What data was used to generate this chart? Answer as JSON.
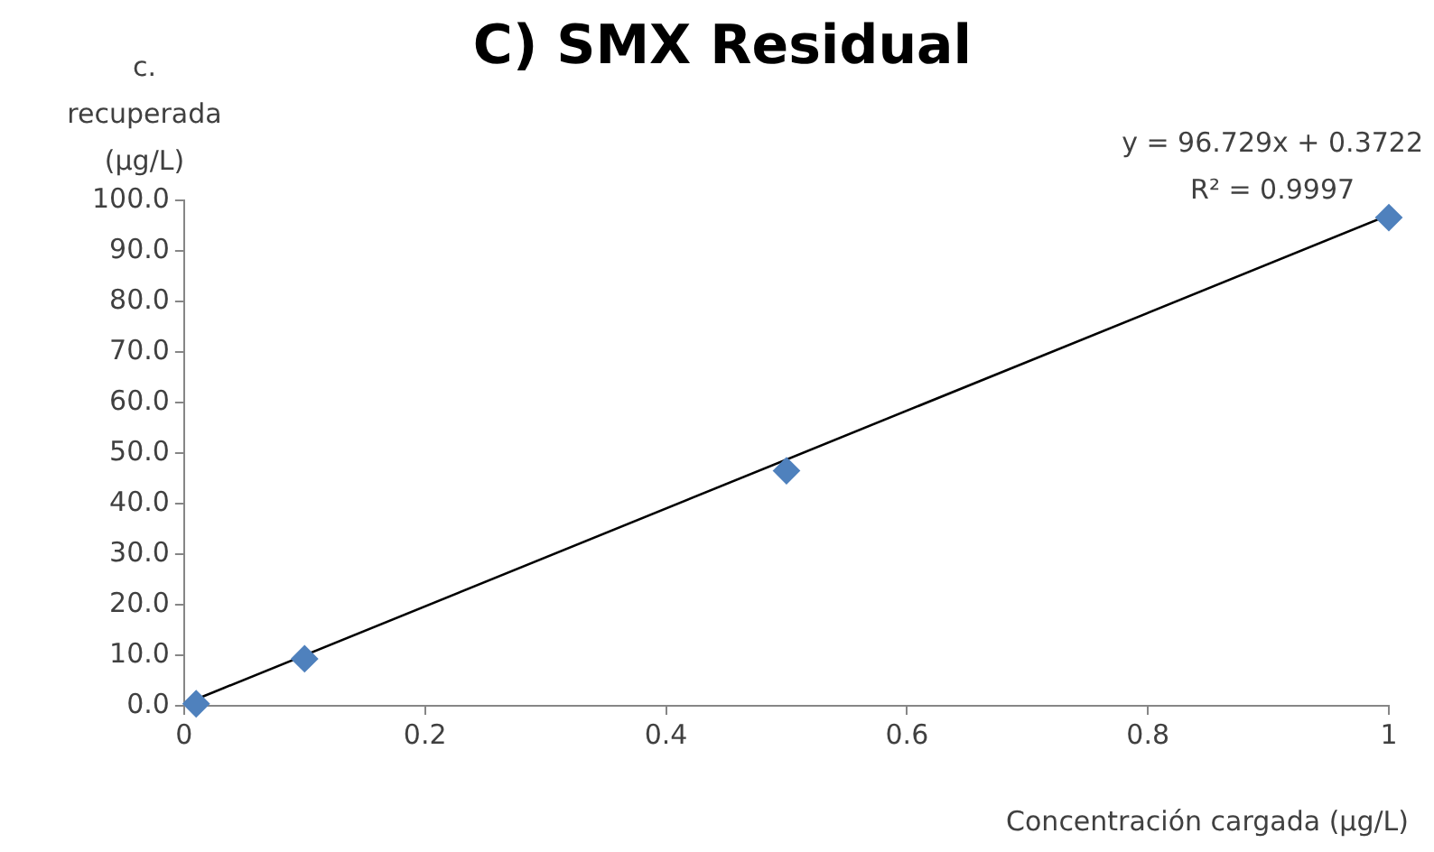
{
  "chart_data": {
    "type": "scatter",
    "title": "C) SMX Residual",
    "xlabel": "Concentración cargada (µg/L)",
    "ylabel": "c. recuperada (µg/L)",
    "series": [
      {
        "color": "#4f81bd",
        "x": [
          0.01,
          0.1,
          0.5,
          1
        ],
        "values": [
          0.4,
          9.3,
          46.5,
          96.6
        ]
      },
      {
        "type": "line",
        "color": "#000000",
        "x": [
          0.01,
          1
        ],
        "values": [
          1.3,
          97.1
        ],
        "marker": "none"
      }
    ],
    "marker": "diamond",
    "line_style": "solid",
    "xlim": [
      0,
      1.0
    ],
    "xticks": [
      0,
      0.2,
      0.4,
      0.6,
      0.8,
      1
    ],
    "ylim": [
      0,
      100
    ],
    "yticks": [
      {
        "value": 0,
        "label": "0.0"
      },
      {
        "value": 10,
        "label": "10.0"
      },
      {
        "value": 20,
        "label": "20.0"
      },
      {
        "value": 30,
        "label": "30.0"
      },
      {
        "value": 40,
        "label": "40.0"
      },
      {
        "value": 50,
        "label": "50.0"
      },
      {
        "value": 60,
        "label": "60.0"
      },
      {
        "value": 70,
        "label": "70.0"
      },
      {
        "value": 80,
        "label": "80.0"
      },
      {
        "value": 90,
        "label": "90.0"
      },
      {
        "value": 100,
        "label": "100.0"
      }
    ],
    "annotations": [
      "y = 96.729x + 0.3722",
      "R² = 0.9997"
    ],
    "grid": false,
    "legend": false
  }
}
